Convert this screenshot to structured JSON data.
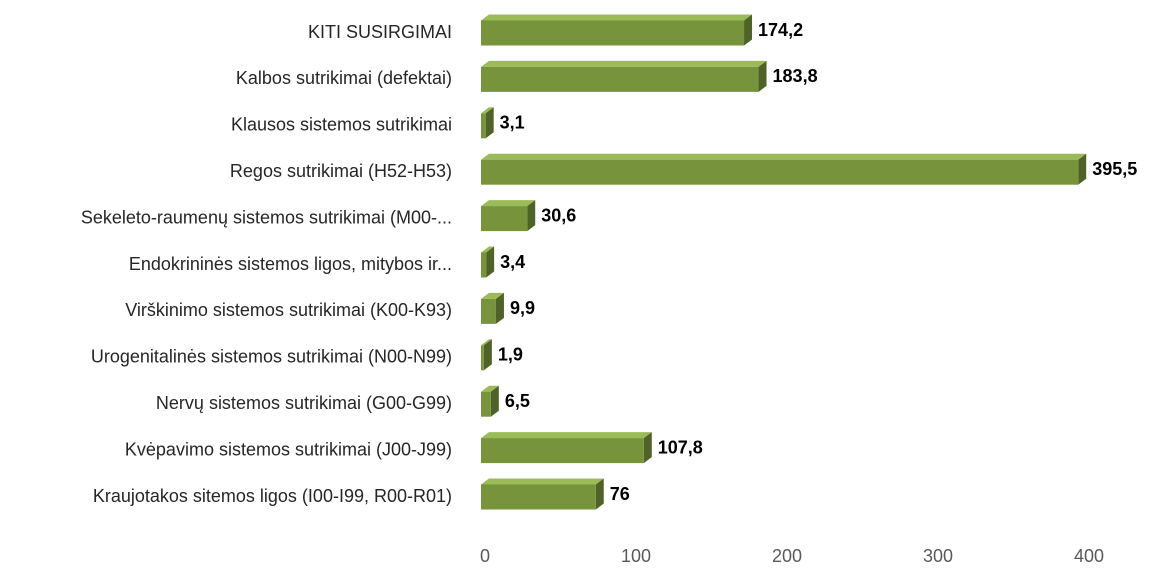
{
  "chart_data": {
    "type": "bar",
    "orientation": "horizontal",
    "categories": [
      "KITI  SUSIRGIMAI",
      "Kalbos sutrikimai (defektai)",
      "Klausos sistemos sutrikimai",
      "Regos sutrikimai (H52-H53)",
      "Sekeleto-raumenų sistemos sutrikimai (M00-...",
      "Endokrininės sistemos ligos, mitybos ir...",
      "Virškinimo sistemos sutrikimai (K00-K93)",
      "Urogenitalinės sistemos sutrikimai (N00-N99)",
      "Nervų sistemos sutrikimai (G00-G99)",
      "Kvėpavimo sistemos sutrikimai (J00-J99)",
      "Kraujotakos sitemos ligos (I00-I99, R00-R01)"
    ],
    "values": [
      174.2,
      183.8,
      3.1,
      395.5,
      30.6,
      3.4,
      9.9,
      1.9,
      6.5,
      107.8,
      76
    ],
    "value_labels": [
      "174,2",
      "183,8",
      "3,1",
      "395,5",
      "30,6",
      "3,4",
      "9,9",
      "1,9",
      "6,5",
      "107,8",
      "76"
    ],
    "color": "#77933c",
    "xlim": [
      0,
      400
    ],
    "xticks": [
      0,
      100,
      200,
      300,
      400
    ],
    "grid": false
  }
}
